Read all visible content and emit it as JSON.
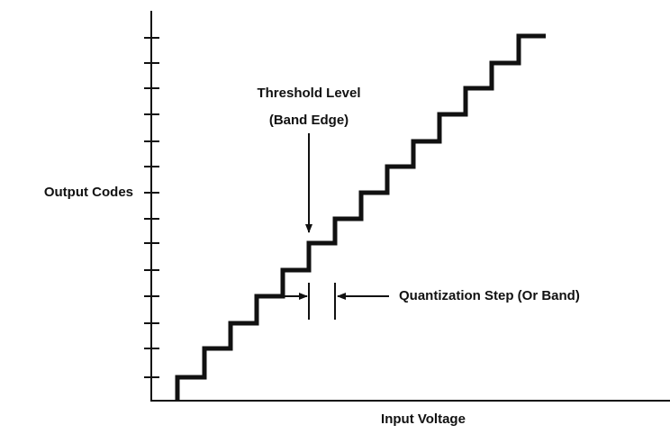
{
  "annotations": {
    "threshold_line1": "Threshold Level",
    "threshold_line2": "(Band Edge)",
    "quantization_step": "Quantization Step (Or Band)"
  },
  "axes": {
    "y_label": "Output Codes",
    "x_label": "Input Voltage"
  }
}
